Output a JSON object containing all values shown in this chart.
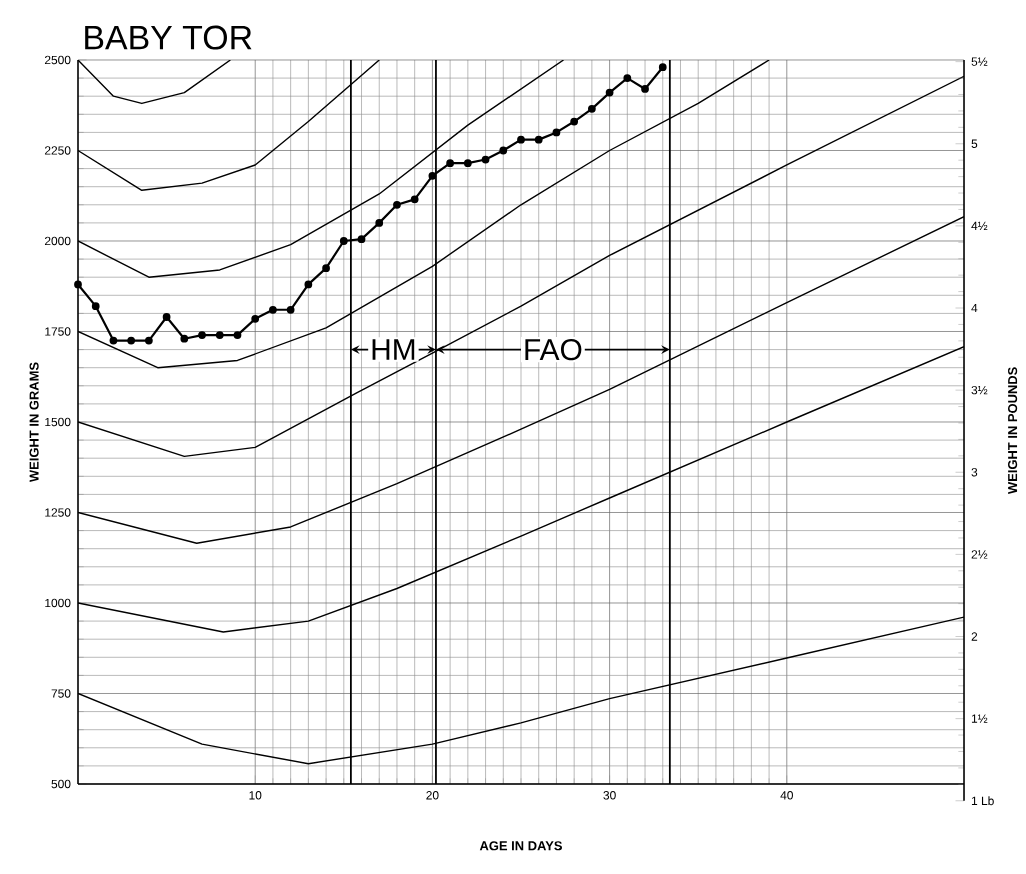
{
  "chart_data": {
    "type": "line",
    "title": "BABY TOR",
    "xlabel": "AGE IN DAYS",
    "ylabel": "WEIGHT IN GRAMS",
    "y2label": "WEIGHT IN POUNDS",
    "xlim": [
      0,
      50
    ],
    "xticks": [
      10,
      20,
      30,
      40
    ],
    "ylim": [
      500,
      2500
    ],
    "yticks": [
      500,
      750,
      1000,
      1250,
      1500,
      1750,
      2000,
      2250,
      2500
    ],
    "y2lim": [
      1,
      5.51
    ],
    "y2ticks": [
      {
        "value": 1,
        "label": "1 Lb"
      },
      {
        "value": 1.5,
        "label": "1½"
      },
      2,
      {
        "value": 2.5,
        "label": "2½"
      },
      3,
      {
        "value": 3.5,
        "label": "3½"
      },
      4,
      {
        "value": 4.5,
        "label": "4½"
      },
      5,
      {
        "value": 5.5,
        "label": "5½"
      }
    ],
    "grid": true,
    "series": [
      {
        "color": "#000000",
        "x": [
          0,
          2,
          3.6,
          6,
          8.6
        ],
        "values": [
          2500,
          2400,
          2380,
          2410,
          2500
        ]
      },
      {
        "color": "#000000",
        "x": [
          0,
          3.6,
          7,
          10,
          13,
          17
        ],
        "values": [
          2250,
          2140,
          2160,
          2210,
          2330,
          2500
        ]
      },
      {
        "color": "#000000",
        "x": [
          0,
          4,
          8,
          12,
          17,
          22,
          27.4
        ],
        "values": [
          2000,
          1900,
          1920,
          1990,
          2130,
          2320,
          2500
        ]
      },
      {
        "color": "#000000",
        "x": [
          0,
          4.5,
          9,
          14,
          20,
          25,
          30,
          35,
          39
        ],
        "values": [
          1750,
          1650,
          1670,
          1760,
          1930,
          2100,
          2250,
          2380,
          2500
        ]
      },
      {
        "color": "#000000",
        "x": [
          0,
          6,
          10,
          15.7,
          20,
          25,
          30,
          40,
          50
        ],
        "values": [
          1500,
          1405,
          1430,
          1580,
          1690,
          1820,
          1960,
          2210,
          2455
        ]
      },
      {
        "color": "#000000",
        "x": [
          0,
          6.7,
          12,
          18,
          25,
          30,
          40,
          50
        ],
        "values": [
          1250,
          1165,
          1210,
          1330,
          1480,
          1590,
          1830,
          2067
        ]
      },
      {
        "color": "#000000",
        "x": [
          0,
          8.2,
          13,
          18,
          25,
          30,
          40,
          50
        ],
        "values": [
          1000,
          920,
          950,
          1040,
          1185,
          1290,
          1500,
          1708
        ]
      },
      {
        "color": "#000000",
        "x": [
          0,
          7,
          13,
          20,
          25,
          30,
          40,
          50
        ],
        "values": [
          750,
          610,
          556,
          610,
          669,
          736,
          848,
          961
        ]
      },
      {
        "color": "#000000",
        "marker": "circle",
        "x": [
          0,
          1,
          2,
          3,
          4,
          5,
          6,
          7,
          8,
          9,
          10,
          11,
          12,
          13,
          14,
          15,
          16,
          17,
          18,
          19,
          20,
          21,
          22,
          23,
          24,
          25,
          26,
          27,
          28,
          29,
          30,
          31,
          32,
          33
        ],
        "values": [
          1880,
          1820,
          1725,
          1725,
          1725,
          1790,
          1730,
          1740,
          1740,
          1740,
          1785,
          1810,
          1810,
          1880,
          1925,
          2000,
          2005,
          2050,
          2100,
          2115,
          2180,
          2215,
          2215,
          2225,
          2250,
          2280,
          2280,
          2300,
          2330,
          2365,
          2410,
          2450,
          2420,
          2480
        ]
      }
    ],
    "ref_lines": [
      {
        "axis": "x",
        "value": 15.4
      },
      {
        "axis": "x",
        "value": 20.2
      },
      {
        "axis": "x",
        "value": 33.4
      }
    ],
    "annotations": [
      {
        "text": "HM",
        "x": 17.8,
        "y": 1700
      },
      {
        "text": "FAO",
        "x": 26.8,
        "y": 1700
      }
    ]
  }
}
